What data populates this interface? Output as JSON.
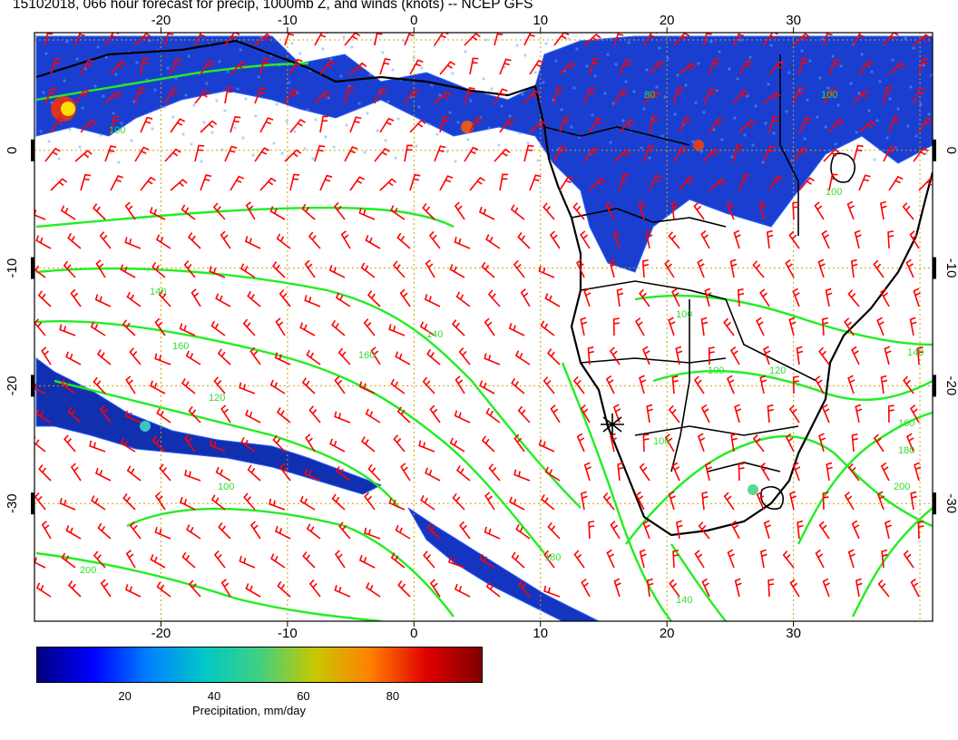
{
  "title": "15102018, 066 hour forecast for precip, 1000mb Z, and winds (knots) -- NCEP GFS",
  "lon_ticks": [
    -20,
    -10,
    0,
    10,
    20,
    30
  ],
  "lat_ticks": [
    0,
    -10,
    -20,
    -30
  ],
  "map_extent": {
    "lon": [
      -30,
      41
    ],
    "lat": [
      -40,
      10
    ]
  },
  "contour_levels": [
    "100",
    "120",
    "140",
    "160",
    "180",
    "200",
    "80"
  ],
  "colorbar": {
    "ticks": [
      "20",
      "40",
      "60",
      "80"
    ],
    "label": "Precipitation, mm/day",
    "range": [
      0,
      100
    ],
    "colors": [
      "#000080",
      "#0000ff",
      "#0080ff",
      "#00c8c8",
      "#40d080",
      "#c8c800",
      "#ff8000",
      "#e00000",
      "#800000"
    ]
  },
  "colors": {
    "wind_barb": "#ff0000",
    "contour": "#22ee22",
    "coastline": "#000000",
    "grid": "#d4a000"
  }
}
